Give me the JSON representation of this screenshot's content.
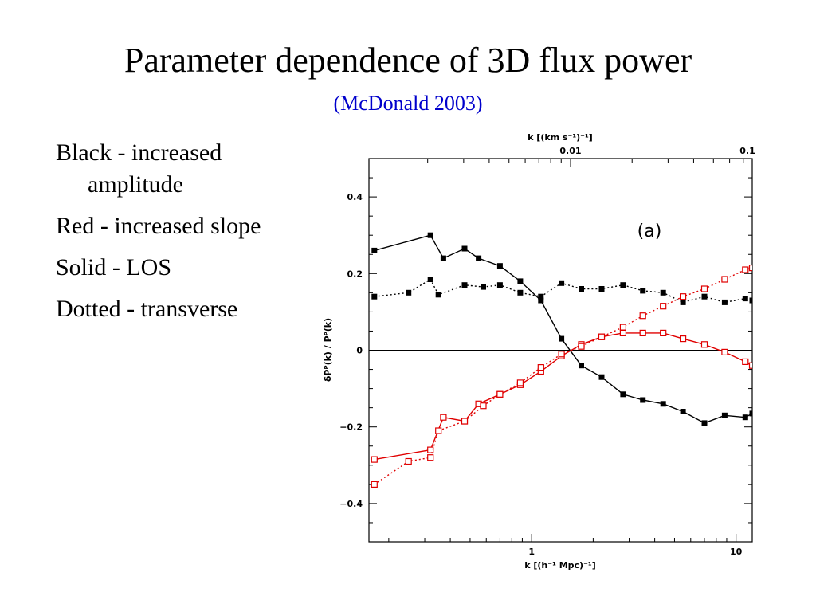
{
  "slide": {
    "title": "Parameter dependence of 3D flux power",
    "subtitle": "(McDonald 2003)",
    "bullets": [
      "Black - increased amplitude",
      "Red - increased slope",
      "Solid - LOS",
      "Dotted - transverse"
    ]
  },
  "colors": {
    "black_series": "#000000",
    "red_series": "#e00000",
    "subtitle": "#0000cc"
  },
  "chart_data": {
    "type": "line",
    "panel_label": "(a)",
    "xlabel": "k [(h⁻¹ Mpc)⁻¹]",
    "x_top_label": "k [(km s⁻¹)⁻¹]",
    "ylabel": "δPᴾ(k) / Pᴾ(k)",
    "x_scale": "log",
    "xlim": [
      0.16,
      12
    ],
    "ylim": [
      -0.5,
      0.5
    ],
    "x_ticks": [
      {
        "value": 1,
        "label": "1"
      },
      {
        "value": 10,
        "label": "10"
      }
    ],
    "y_ticks": [
      {
        "value": 0.4,
        "label": "0.4"
      },
      {
        "value": 0.2,
        "label": "0.2"
      },
      {
        "value": 0,
        "label": "0"
      },
      {
        "value": -0.2,
        "label": "−0.2"
      },
      {
        "value": -0.4,
        "label": "−0.4"
      }
    ],
    "top_ticks": [
      {
        "value": 1.55,
        "label": "0.01"
      },
      {
        "value": 15.5,
        "label": "0.1"
      }
    ],
    "series": [
      {
        "color": "#000000",
        "style": "solid",
        "marker": "filled-square",
        "x": [
          0.17,
          0.32,
          0.37,
          0.47,
          0.55,
          0.7,
          0.88,
          1.11,
          1.4,
          1.75,
          2.2,
          2.8,
          3.5,
          4.4,
          5.5,
          7.0,
          8.8,
          11.1,
          12.0
        ],
        "y": [
          0.26,
          0.3,
          0.24,
          0.265,
          0.24,
          0.22,
          0.18,
          0.13,
          0.03,
          -0.04,
          -0.07,
          -0.115,
          -0.13,
          -0.14,
          -0.16,
          -0.19,
          -0.17,
          -0.175,
          -0.165
        ]
      },
      {
        "color": "#000000",
        "style": "dotted",
        "marker": "filled-square",
        "x": [
          0.17,
          0.25,
          0.32,
          0.35,
          0.47,
          0.58,
          0.7,
          0.88,
          1.11,
          1.4,
          1.75,
          2.2,
          2.8,
          3.5,
          4.4,
          5.5,
          7.0,
          8.8,
          11.1,
          12.0
        ],
        "y": [
          0.14,
          0.15,
          0.185,
          0.145,
          0.17,
          0.165,
          0.17,
          0.15,
          0.14,
          0.175,
          0.16,
          0.16,
          0.17,
          0.155,
          0.15,
          0.125,
          0.14,
          0.125,
          0.135,
          0.13
        ]
      },
      {
        "color": "#e00000",
        "style": "solid",
        "marker": "open-square",
        "x": [
          0.17,
          0.32,
          0.37,
          0.47,
          0.55,
          0.7,
          0.88,
          1.11,
          1.4,
          1.75,
          2.2,
          2.8,
          3.5,
          4.4,
          5.5,
          7.0,
          8.8,
          11.1,
          12.0
        ],
        "y": [
          -0.285,
          -0.26,
          -0.175,
          -0.185,
          -0.14,
          -0.115,
          -0.09,
          -0.055,
          -0.015,
          0.015,
          0.035,
          0.045,
          0.045,
          0.045,
          0.03,
          0.015,
          -0.005,
          -0.03,
          -0.04
        ]
      },
      {
        "color": "#e00000",
        "style": "dotted",
        "marker": "open-square",
        "x": [
          0.17,
          0.25,
          0.32,
          0.35,
          0.47,
          0.58,
          0.7,
          0.88,
          1.11,
          1.4,
          1.75,
          2.2,
          2.8,
          3.5,
          4.4,
          5.5,
          7.0,
          8.8,
          11.1,
          12.0
        ],
        "y": [
          -0.35,
          -0.29,
          -0.28,
          -0.21,
          -0.185,
          -0.145,
          -0.115,
          -0.085,
          -0.045,
          -0.01,
          0.01,
          0.035,
          0.06,
          0.09,
          0.115,
          0.14,
          0.16,
          0.185,
          0.21,
          0.215
        ]
      }
    ]
  }
}
